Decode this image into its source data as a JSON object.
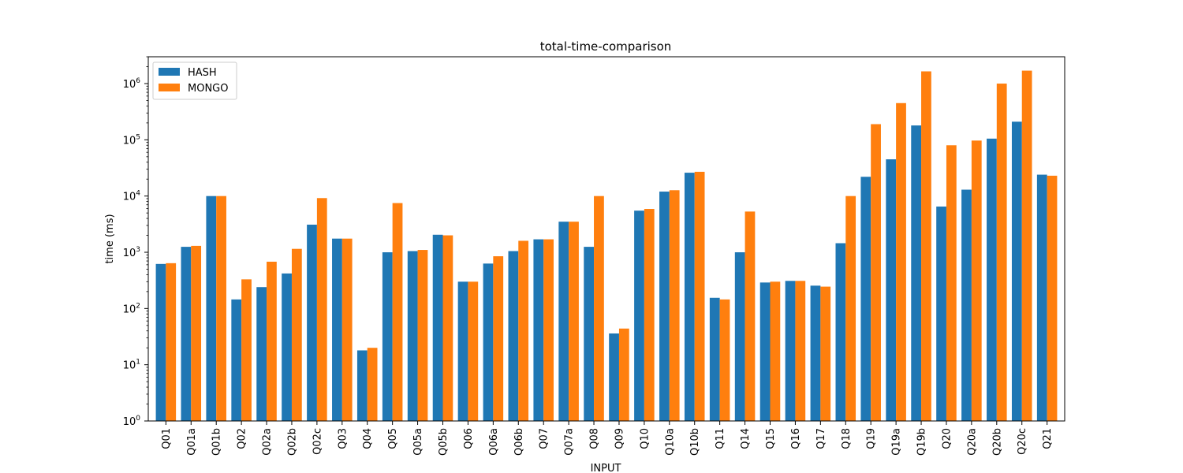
{
  "chart_data": {
    "type": "bar",
    "title": "total-time-comparison",
    "xlabel": "INPUT",
    "ylabel": "time (ms)",
    "yscale": "log",
    "ylim": [
      1,
      3000000
    ],
    "legend_placement": "top-left",
    "grid": false,
    "categories": [
      "Q01",
      "Q01a",
      "Q01b",
      "Q02",
      "Q02a",
      "Q02b",
      "Q02c",
      "Q03",
      "Q04",
      "Q05",
      "Q05a",
      "Q05b",
      "Q06",
      "Q06a",
      "Q06b",
      "Q07",
      "Q07a",
      "Q08",
      "Q09",
      "Q10",
      "Q10a",
      "Q10b",
      "Q11",
      "Q14",
      "Q15",
      "Q16",
      "Q17",
      "Q18",
      "Q19",
      "Q19a",
      "Q19b",
      "Q20",
      "Q20a",
      "Q20b",
      "Q20c",
      "Q21"
    ],
    "series": [
      {
        "name": "HASH",
        "color": "#1f77b4",
        "values": [
          620,
          1250,
          10000,
          145,
          240,
          420,
          3100,
          1750,
          18,
          1000,
          1050,
          2050,
          300,
          630,
          1050,
          1700,
          3500,
          1250,
          36,
          5500,
          12000,
          26000,
          155,
          1000,
          290,
          310,
          255,
          1450,
          22000,
          45000,
          180000,
          6500,
          13000,
          105000,
          210000,
          24000
        ]
      },
      {
        "name": "MONGO",
        "color": "#ff7f0e",
        "values": [
          640,
          1300,
          10000,
          330,
          680,
          1150,
          9200,
          1750,
          20,
          7500,
          1100,
          2000,
          300,
          850,
          1600,
          1700,
          3500,
          10000,
          44,
          5900,
          12700,
          27000,
          145,
          5300,
          300,
          310,
          245,
          10000,
          190000,
          450000,
          1650000,
          80000,
          97000,
          1000000,
          1700000,
          23000
        ]
      }
    ],
    "yticks": [
      {
        "value": 1,
        "base": "10",
        "exp": "0"
      },
      {
        "value": 10,
        "base": "10",
        "exp": "1"
      },
      {
        "value": 100,
        "base": "10",
        "exp": "2"
      },
      {
        "value": 1000,
        "base": "10",
        "exp": "3"
      },
      {
        "value": 10000,
        "base": "10",
        "exp": "4"
      },
      {
        "value": 100000,
        "base": "10",
        "exp": "5"
      },
      {
        "value": 1000000,
        "base": "10",
        "exp": "6"
      }
    ]
  }
}
